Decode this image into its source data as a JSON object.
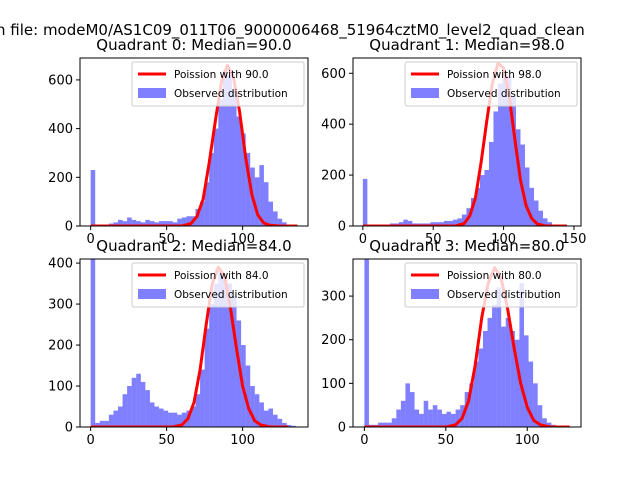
{
  "figure": {
    "suptitle": "n file: modeM0/AS1C09_011T06_9000006468_51964cztM0_level2_quad_clean"
  },
  "colors": {
    "hist": "#0000ff",
    "poisson": "#ff0000",
    "axis": "#000000",
    "legend_border": "#cccccc"
  },
  "chart_data": [
    {
      "type": "bar",
      "title": "Quadrant 0: Median=90.0",
      "median": 90.0,
      "xlim": [
        -7,
        143
      ],
      "ylim": [
        0,
        690
      ],
      "xticks": [
        0,
        50,
        100
      ],
      "yticks": [
        0,
        200,
        400,
        600
      ],
      "bin_width": 3,
      "bins": [
        [
          0,
          230
        ],
        [
          3,
          5
        ],
        [
          6,
          5
        ],
        [
          9,
          5
        ],
        [
          12,
          10
        ],
        [
          15,
          15
        ],
        [
          18,
          25
        ],
        [
          21,
          20
        ],
        [
          24,
          35
        ],
        [
          27,
          25
        ],
        [
          30,
          20
        ],
        [
          33,
          15
        ],
        [
          36,
          25
        ],
        [
          39,
          20
        ],
        [
          42,
          15
        ],
        [
          45,
          20
        ],
        [
          48,
          20
        ],
        [
          51,
          20
        ],
        [
          54,
          15
        ],
        [
          57,
          30
        ],
        [
          60,
          35
        ],
        [
          63,
          40
        ],
        [
          66,
          40
        ],
        [
          69,
          70
        ],
        [
          72,
          100
        ],
        [
          75,
          180
        ],
        [
          78,
          300
        ],
        [
          81,
          400
        ],
        [
          84,
          520
        ],
        [
          87,
          640
        ],
        [
          90,
          620
        ],
        [
          93,
          560
        ],
        [
          96,
          450
        ],
        [
          99,
          380
        ],
        [
          102,
          300
        ],
        [
          105,
          240
        ],
        [
          108,
          200
        ],
        [
          111,
          250
        ],
        [
          114,
          180
        ],
        [
          117,
          100
        ],
        [
          120,
          60
        ],
        [
          123,
          30
        ],
        [
          126,
          15
        ],
        [
          129,
          5
        ],
        [
          132,
          3
        ]
      ],
      "poisson": {
        "label": "Poission with 90.0",
        "x": [
          0,
          60,
          66,
          70,
          74,
          78,
          82,
          86,
          90,
          94,
          98,
          102,
          106,
          110,
          114,
          118,
          124,
          136
        ],
        "y": [
          0,
          0,
          10,
          40,
          110,
          260,
          430,
          590,
          660,
          610,
          470,
          280,
          130,
          45,
          12,
          3,
          0,
          0
        ]
      },
      "legend": [
        "Poission with 90.0",
        "Observed distribution"
      ]
    },
    {
      "type": "bar",
      "title": "Quadrant 1: Median=98.0",
      "median": 98.0,
      "xlim": [
        -7,
        155
      ],
      "ylim": [
        0,
        660
      ],
      "xticks": [
        0,
        50,
        100,
        150
      ],
      "yticks": [
        0,
        200,
        400,
        600
      ],
      "bin_width": 3.2,
      "bins": [
        [
          0,
          185
        ],
        [
          3.2,
          5
        ],
        [
          6.4,
          5
        ],
        [
          9.6,
          5
        ],
        [
          12.8,
          5
        ],
        [
          16,
          5
        ],
        [
          19.2,
          10
        ],
        [
          22.4,
          10
        ],
        [
          25.6,
          15
        ],
        [
          28.8,
          25
        ],
        [
          32,
          20
        ],
        [
          35.2,
          10
        ],
        [
          38.4,
          10
        ],
        [
          41.6,
          10
        ],
        [
          44.8,
          10
        ],
        [
          48,
          15
        ],
        [
          51.2,
          15
        ],
        [
          54.4,
          15
        ],
        [
          57.6,
          20
        ],
        [
          60.8,
          20
        ],
        [
          64,
          25
        ],
        [
          67.2,
          30
        ],
        [
          70.4,
          45
        ],
        [
          73.6,
          70
        ],
        [
          76.8,
          110
        ],
        [
          80,
          150
        ],
        [
          83.2,
          200
        ],
        [
          86.4,
          220
        ],
        [
          89.6,
          330
        ],
        [
          92.8,
          450
        ],
        [
          96,
          560
        ],
        [
          99.2,
          600
        ],
        [
          102.4,
          590
        ],
        [
          105.6,
          510
        ],
        [
          108.8,
          380
        ],
        [
          112,
          320
        ],
        [
          115.2,
          230
        ],
        [
          118.4,
          150
        ],
        [
          121.6,
          100
        ],
        [
          124.8,
          60
        ],
        [
          128,
          30
        ],
        [
          131.2,
          15
        ],
        [
          134.4,
          5
        ]
      ],
      "poisson": {
        "label": "Poission with 98.0",
        "x": [
          0,
          66,
          72,
          76,
          80,
          84,
          88,
          92,
          96,
          100,
          104,
          108,
          112,
          116,
          120,
          124,
          130,
          145
        ],
        "y": [
          0,
          0,
          10,
          40,
          110,
          250,
          410,
          560,
          640,
          620,
          510,
          340,
          180,
          80,
          30,
          8,
          0,
          0
        ]
      },
      "legend": [
        "Poission with 98.0",
        "Observed distribution"
      ]
    },
    {
      "type": "bar",
      "title": "Quadrant 2: Median=84.0",
      "median": 84.0,
      "xlim": [
        -7,
        143
      ],
      "ylim": [
        0,
        410
      ],
      "xticks": [
        0,
        50,
        100
      ],
      "yticks": [
        0,
        100,
        200,
        300,
        400
      ],
      "bin_width": 3,
      "bins": [
        [
          0,
          410
        ],
        [
          3,
          10
        ],
        [
          6,
          15
        ],
        [
          9,
          15
        ],
        [
          12,
          30
        ],
        [
          15,
          40
        ],
        [
          18,
          50
        ],
        [
          21,
          80
        ],
        [
          24,
          100
        ],
        [
          27,
          120
        ],
        [
          30,
          130
        ],
        [
          33,
          110
        ],
        [
          36,
          90
        ],
        [
          39,
          60
        ],
        [
          42,
          50
        ],
        [
          45,
          45
        ],
        [
          48,
          40
        ],
        [
          51,
          35
        ],
        [
          54,
          35
        ],
        [
          57,
          30
        ],
        [
          60,
          35
        ],
        [
          63,
          40
        ],
        [
          66,
          50
        ],
        [
          69,
          80
        ],
        [
          72,
          140
        ],
        [
          75,
          240
        ],
        [
          78,
          300
        ],
        [
          81,
          350
        ],
        [
          84,
          380
        ],
        [
          87,
          360
        ],
        [
          90,
          350
        ],
        [
          93,
          320
        ],
        [
          96,
          260
        ],
        [
          99,
          200
        ],
        [
          102,
          150
        ],
        [
          105,
          100
        ],
        [
          108,
          80
        ],
        [
          111,
          60
        ],
        [
          114,
          40
        ],
        [
          117,
          45
        ],
        [
          120,
          30
        ],
        [
          123,
          20
        ],
        [
          126,
          10
        ],
        [
          129,
          5
        ],
        [
          132,
          3
        ]
      ],
      "poisson": {
        "label": "Poission with 84.0",
        "x": [
          0,
          54,
          60,
          64,
          68,
          72,
          76,
          80,
          84,
          88,
          92,
          96,
          100,
          104,
          108,
          112,
          118,
          130
        ],
        "y": [
          0,
          0,
          5,
          20,
          60,
          140,
          250,
          350,
          390,
          370,
          290,
          190,
          100,
          45,
          15,
          5,
          0,
          0
        ]
      },
      "legend": [
        "Poission with 84.0",
        "Observed distribution"
      ]
    },
    {
      "type": "bar",
      "title": "Quadrant 3: Median=80.0",
      "median": 80.0,
      "xlim": [
        -7,
        133
      ],
      "ylim": [
        0,
        385
      ],
      "xticks": [
        0,
        50,
        100
      ],
      "yticks": [
        0,
        100,
        200,
        300
      ],
      "bin_width": 2.8,
      "bins": [
        [
          0,
          385
        ],
        [
          2.8,
          5
        ],
        [
          5.6,
          5
        ],
        [
          8.4,
          10
        ],
        [
          11.2,
          10
        ],
        [
          14,
          10
        ],
        [
          16.8,
          20
        ],
        [
          19.6,
          40
        ],
        [
          22.4,
          60
        ],
        [
          25.2,
          100
        ],
        [
          28,
          80
        ],
        [
          30.8,
          40
        ],
        [
          33.6,
          30
        ],
        [
          36.4,
          60
        ],
        [
          39.2,
          40
        ],
        [
          42,
          50
        ],
        [
          44.8,
          40
        ],
        [
          47.6,
          30
        ],
        [
          50.4,
          35
        ],
        [
          53.2,
          30
        ],
        [
          56,
          40
        ],
        [
          58.8,
          50
        ],
        [
          61.6,
          80
        ],
        [
          64.4,
          100
        ],
        [
          67.2,
          150
        ],
        [
          70,
          180
        ],
        [
          72.8,
          220
        ],
        [
          75.6,
          250
        ],
        [
          78.4,
          280
        ],
        [
          81.2,
          320
        ],
        [
          84,
          230
        ],
        [
          86.8,
          250
        ],
        [
          89.6,
          220
        ],
        [
          92.4,
          200
        ],
        [
          95.2,
          330
        ],
        [
          98,
          210
        ],
        [
          100.8,
          150
        ],
        [
          103.6,
          100
        ],
        [
          106.4,
          50
        ],
        [
          109.2,
          20
        ],
        [
          112,
          10
        ],
        [
          114.8,
          5
        ]
      ],
      "poisson": {
        "label": "Poission with 80.0",
        "x": [
          0,
          50,
          56,
          60,
          64,
          68,
          72,
          76,
          80,
          84,
          88,
          92,
          96,
          100,
          104,
          108,
          114,
          126
        ],
        "y": [
          0,
          0,
          5,
          20,
          60,
          140,
          250,
          330,
          365,
          340,
          270,
          180,
          100,
          45,
          15,
          5,
          0,
          0
        ]
      },
      "legend": [
        "Poission with 80.0",
        "Observed distribution"
      ]
    }
  ]
}
